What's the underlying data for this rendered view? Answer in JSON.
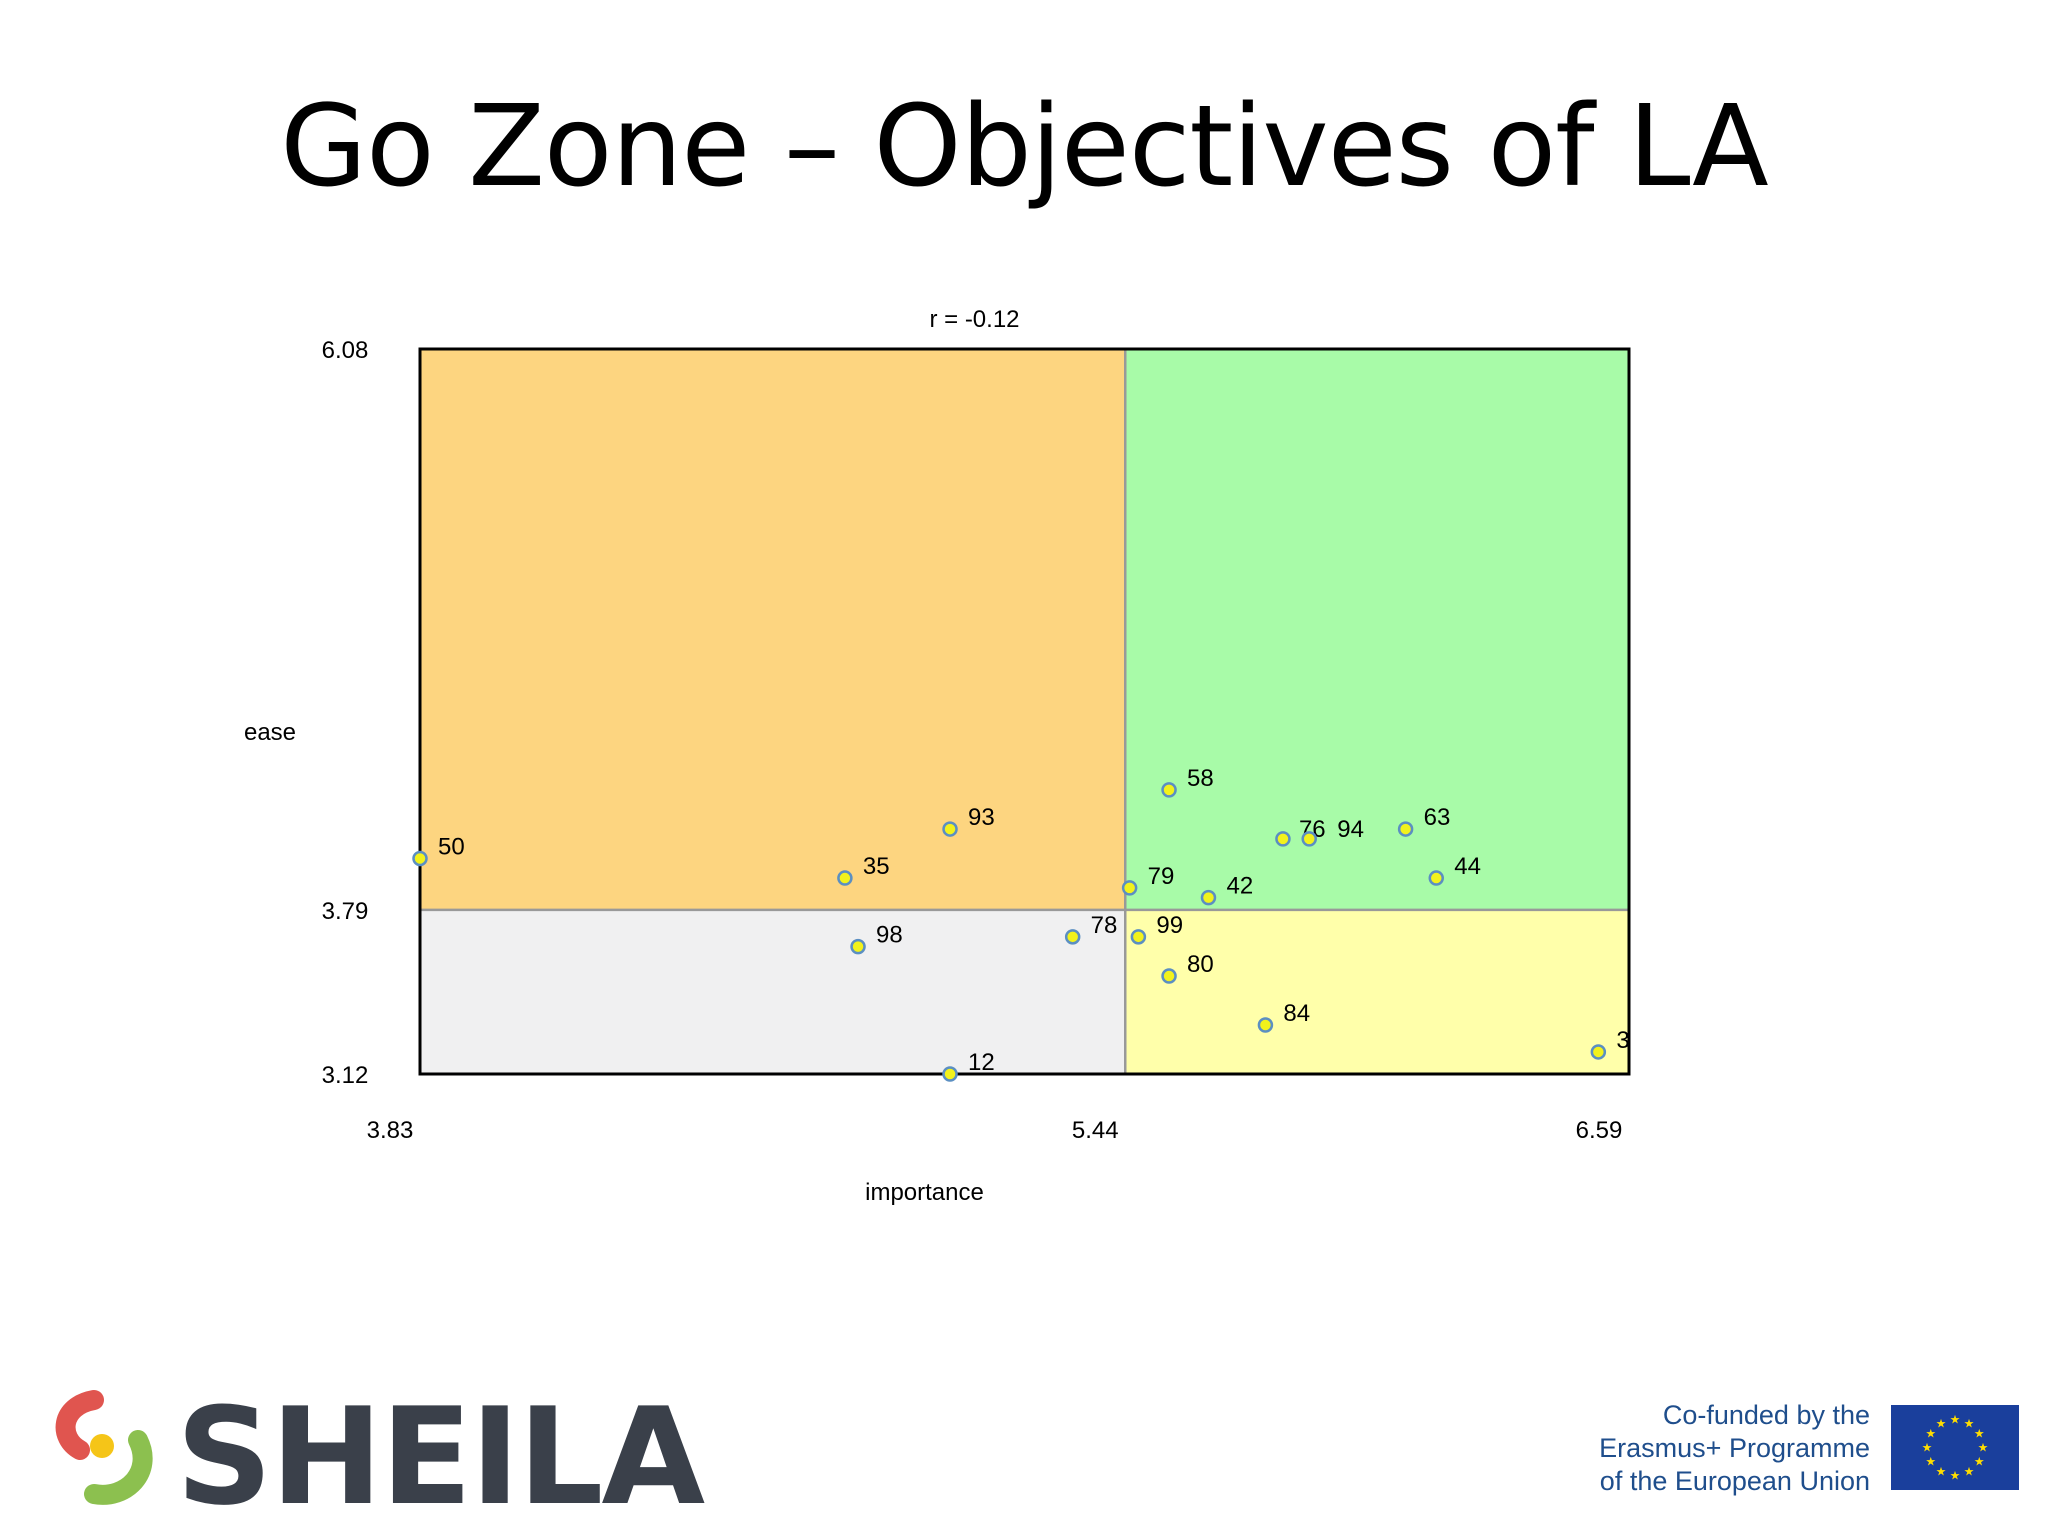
{
  "slide": {
    "title": "Go Zone – Objectives of LA"
  },
  "chart_data": {
    "type": "scatter",
    "title": "r = -0.12",
    "xlabel": "importance",
    "ylabel": "ease",
    "xlim": [
      3.83,
      6.59
    ],
    "ylim": [
      3.12,
      6.08
    ],
    "x_ticks": [
      "3.83",
      "5.44",
      "6.59"
    ],
    "y_ticks": [
      "6.08",
      "3.79",
      "3.12"
    ],
    "x_mean": 5.44,
    "y_mean": 3.79,
    "quadrant_colors": {
      "top_left": "#fdd580",
      "top_right": "#a8fba8",
      "bottom_left": "#f0f0f1",
      "bottom_right": "#ffffaa"
    },
    "point_fill": "#f2f21c",
    "point_stroke": "#5b8fc2",
    "points": [
      {
        "label": "50",
        "x": 3.83,
        "y": 4.0
      },
      {
        "label": "35",
        "x": 4.8,
        "y": 3.92
      },
      {
        "label": "93",
        "x": 5.04,
        "y": 4.12
      },
      {
        "label": "98",
        "x": 4.83,
        "y": 3.64
      },
      {
        "label": "12",
        "x": 5.04,
        "y": 3.12
      },
      {
        "label": "78",
        "x": 5.32,
        "y": 3.68
      },
      {
        "label": "79",
        "x": 5.45,
        "y": 3.88
      },
      {
        "label": "99",
        "x": 5.47,
        "y": 3.68
      },
      {
        "label": "58",
        "x": 5.54,
        "y": 4.28
      },
      {
        "label": "80",
        "x": 5.54,
        "y": 3.52
      },
      {
        "label": "42",
        "x": 5.63,
        "y": 3.84
      },
      {
        "label": "84",
        "x": 5.76,
        "y": 3.32
      },
      {
        "label": "76",
        "x": 5.8,
        "y": 4.08
      },
      {
        "label": "94",
        "x": 5.86,
        "y": 4.08
      },
      {
        "label": "63",
        "x": 6.08,
        "y": 4.12
      },
      {
        "label": "44",
        "x": 6.15,
        "y": 3.92
      },
      {
        "label": "3",
        "x": 6.52,
        "y": 3.21
      }
    ]
  },
  "footer": {
    "logo_text": "SHEILA",
    "eu_lines": [
      "Co-funded by the",
      "Erasmus+ Programme",
      "of the European Union"
    ]
  }
}
